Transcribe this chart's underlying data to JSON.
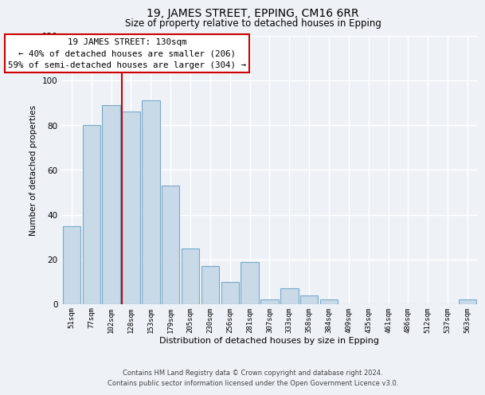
{
  "title": "19, JAMES STREET, EPPING, CM16 6RR",
  "subtitle": "Size of property relative to detached houses in Epping",
  "xlabel": "Distribution of detached houses by size in Epping",
  "ylabel": "Number of detached properties",
  "bar_labels": [
    "51sqm",
    "77sqm",
    "102sqm",
    "128sqm",
    "153sqm",
    "179sqm",
    "205sqm",
    "230sqm",
    "256sqm",
    "281sqm",
    "307sqm",
    "333sqm",
    "358sqm",
    "384sqm",
    "409sqm",
    "435sqm",
    "461sqm",
    "486sqm",
    "512sqm",
    "537sqm",
    "563sqm"
  ],
  "bar_values": [
    35,
    80,
    89,
    86,
    91,
    53,
    25,
    17,
    10,
    19,
    2,
    7,
    4,
    2,
    0,
    0,
    0,
    0,
    0,
    0,
    2
  ],
  "bar_color": "#c8d9e8",
  "bar_edge_color": "#7aaac8",
  "reference_line_label": "19 JAMES STREET: 130sqm",
  "annotation_line1": "← 40% of detached houses are smaller (206)",
  "annotation_line2": "59% of semi-detached houses are larger (304) →",
  "ylim": [
    0,
    120
  ],
  "yticks": [
    0,
    20,
    40,
    60,
    80,
    100,
    120
  ],
  "annotation_box_color": "#ffffff",
  "annotation_box_edge_color": "#cc0000",
  "ref_line_color": "#cc0000",
  "footer_line1": "Contains HM Land Registry data © Crown copyright and database right 2024.",
  "footer_line2": "Contains public sector information licensed under the Open Government Licence v3.0.",
  "bg_color": "#eef2f7",
  "grid_color": "#ffffff",
  "ref_line_index": 3
}
